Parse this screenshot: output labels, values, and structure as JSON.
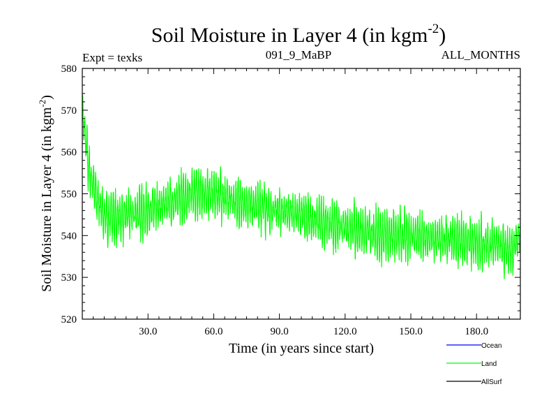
{
  "chart_data": {
    "type": "line",
    "title": "Soil Moisture in Layer 4 (in kgm",
    "title_superscript": "-2",
    "title_close": ")",
    "subtitle_left": "Expt = texks",
    "subtitle_center": "091_9_MaBP",
    "subtitle_right": "ALL_MONTHS",
    "xlabel": "Time (in years since start)",
    "ylabel": "Soil Moisture in Layer 4 (in kgm",
    "ylabel_superscript": "-2",
    "ylabel_close": ")",
    "xlim": [
      0,
      200
    ],
    "ylim": [
      520,
      580
    ],
    "x_ticks": [
      30,
      60,
      90,
      120,
      150,
      180
    ],
    "x_tick_labels": [
      "30.0",
      "60.0",
      "90.0",
      "120.0",
      "150.0",
      "180.0"
    ],
    "y_ticks": [
      520,
      530,
      540,
      550,
      560,
      570,
      580
    ],
    "y_tick_labels": [
      "520",
      "530",
      "540",
      "550",
      "560",
      "570",
      "580"
    ],
    "grid": false,
    "series": [
      {
        "name": "Ocean",
        "color": "#0000ff",
        "values": []
      },
      {
        "name": "Land",
        "color": "#00ff00",
        "annual_cycle_amplitude": 11,
        "envelope": {
          "x": [
            0,
            1,
            3,
            5,
            8,
            12,
            20,
            30,
            40,
            50,
            60,
            70,
            80,
            90,
            100,
            110,
            120,
            130,
            140,
            150,
            160,
            170,
            180,
            190,
            196,
            200
          ],
          "mean": [
            571,
            566,
            556,
            552,
            547,
            544,
            545,
            546,
            548,
            550,
            550,
            548,
            547,
            546,
            545,
            543,
            542,
            541,
            540,
            540,
            539,
            539,
            538,
            538,
            536,
            540
          ]
        }
      },
      {
        "name": "AllSurf",
        "color": "#000000",
        "values": []
      }
    ],
    "legend": {
      "placement": "bottom-right",
      "entries": [
        "Ocean",
        "Land",
        "AllSurf"
      ]
    }
  }
}
